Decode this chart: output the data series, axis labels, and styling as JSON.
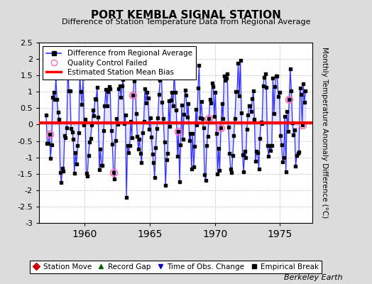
{
  "title": "PORT KEMBLA SIGNAL STATION",
  "subtitle": "Difference of Station Temperature Data from Regional Average",
  "ylabel": "Monthly Temperature Anomaly Difference (°C)",
  "ylim": [
    -3.0,
    2.5
  ],
  "yticks": [
    -3,
    -2.5,
    -2,
    -1.5,
    -1,
    -0.5,
    0,
    0.5,
    1,
    1.5,
    2,
    2.5
  ],
  "xlim": [
    1956.5,
    1977.5
  ],
  "xticks": [
    1960,
    1965,
    1970,
    1975
  ],
  "bias": 0.05,
  "background_color": "#dcdcdc",
  "plot_bg_color": "#ffffff",
  "line_color": "#3333ff",
  "line_fill_color": "#aaaaff",
  "bias_color": "#ff0000",
  "marker_color": "#000000",
  "qc_color": "#ff69b4",
  "annotation": "Berkeley Earth",
  "legend_entries": [
    "Difference from Regional Average",
    "Quality Control Failed",
    "Estimated Station Mean Bias"
  ],
  "bottom_legend": [
    {
      "label": "Station Move",
      "color": "#cc0000",
      "marker": "D"
    },
    {
      "label": "Record Gap",
      "color": "#006600",
      "marker": "^"
    },
    {
      "label": "Time of Obs. Change",
      "color": "#0000cc",
      "marker": "v"
    },
    {
      "label": "Empirical Break",
      "color": "#000000",
      "marker": "s"
    }
  ],
  "seed": 42
}
